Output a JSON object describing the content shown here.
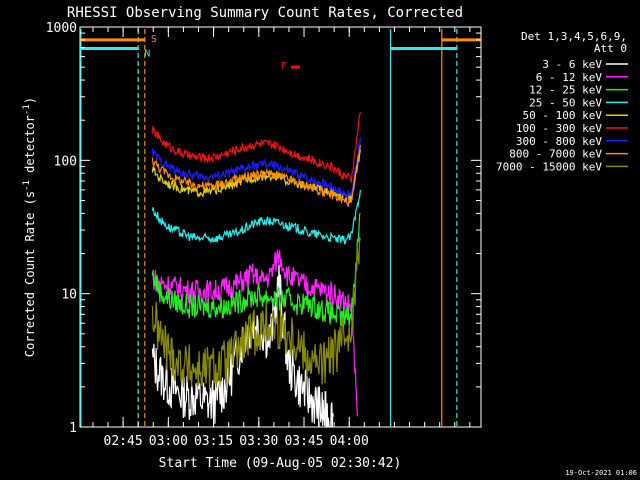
{
  "chart_data": {
    "type": "line",
    "title": "RHESSI Observing Summary Count Rates, Corrected",
    "xlabel": "Start Time (09-Aug-05 02:30:42)",
    "ylabel_parts": [
      "Corrected Count Rate (s",
      "-1",
      " detector",
      "-1",
      ")"
    ],
    "y_scale": "log",
    "ylim": [
      1,
      1000
    ],
    "y_ticks": [
      {
        "value": 1,
        "label": "1"
      },
      {
        "value": 10,
        "label": "10"
      },
      {
        "value": 100,
        "label": "100"
      },
      {
        "value": 1000,
        "label": "1000"
      }
    ],
    "x_unit": "minutes since 02:30:42",
    "xlim": [
      0,
      133
    ],
    "x_ticks": [
      {
        "value": 14.3,
        "label": "02:45"
      },
      {
        "value": 29.3,
        "label": "03:00"
      },
      {
        "value": 44.3,
        "label": "03:15"
      },
      {
        "value": 59.3,
        "label": "03:30"
      },
      {
        "value": 74.3,
        "label": "03:45"
      },
      {
        "value": 89.3,
        "label": "04:00"
      }
    ],
    "legend": {
      "header_lines": [
        "Det 1,3,4,5,6,9,",
        "Att 0"
      ],
      "placement": "right"
    },
    "series": [
      {
        "name": "3 - 6 keV",
        "color": "#ffffff",
        "x": [
          24,
          27,
          30,
          33,
          36,
          39,
          42,
          45,
          48,
          51,
          54,
          57,
          60,
          63,
          66,
          69,
          72,
          75,
          78,
          80,
          82,
          84
        ],
        "y": [
          3.2,
          2.4,
          2.0,
          1.8,
          1.7,
          1.7,
          1.5,
          1.6,
          2.0,
          2.8,
          4.5,
          6.0,
          5.5,
          4.5,
          12.0,
          3.0,
          2.2,
          1.8,
          1.5,
          1.3,
          1.2,
          1.2
        ]
      },
      {
        "name": "6 - 12 keV",
        "color": "#ff22ff",
        "x": [
          24,
          27,
          30,
          33,
          36,
          39,
          42,
          45,
          48,
          51,
          54,
          57,
          60,
          63,
          66,
          69,
          72,
          75,
          78,
          81,
          84,
          87,
          90,
          92
        ],
        "y": [
          13.0,
          12.0,
          11.5,
          11.0,
          10.5,
          10.5,
          10.5,
          10.5,
          11.0,
          11.5,
          12.5,
          14.0,
          12.5,
          13.5,
          20.0,
          13.5,
          12.5,
          11.5,
          11.0,
          10.5,
          10.0,
          9.0,
          8.0,
          1.2
        ]
      },
      {
        "name": "12 - 25 keV",
        "color": "#22ee22",
        "x": [
          24,
          27,
          30,
          33,
          36,
          39,
          42,
          45,
          48,
          51,
          54,
          57,
          60,
          63,
          66,
          69,
          72,
          75,
          78,
          81,
          84,
          87,
          90,
          93
        ],
        "y": [
          14.0,
          10.0,
          9.0,
          8.5,
          8.0,
          8.0,
          8.0,
          8.0,
          8.0,
          8.5,
          9.0,
          9.5,
          9.5,
          9.5,
          9.0,
          9.0,
          8.5,
          8.5,
          8.0,
          7.5,
          7.0,
          6.5,
          7.0,
          40.0
        ]
      },
      {
        "name": "25 - 50 keV",
        "color": "#22eeee",
        "x": [
          24,
          27,
          30,
          33,
          36,
          39,
          42,
          45,
          48,
          51,
          54,
          57,
          60,
          63,
          66,
          69,
          72,
          75,
          78,
          81,
          84,
          87,
          90,
          93
        ],
        "y": [
          43.0,
          35.0,
          31.0,
          29.0,
          27.0,
          26.0,
          26.0,
          26.0,
          27.0,
          28.0,
          30.0,
          33.0,
          35.0,
          35.0,
          34.0,
          32.0,
          31.0,
          29.0,
          28.0,
          27.0,
          26.0,
          25.0,
          27.0,
          60.0
        ]
      },
      {
        "name": "50 - 100 keV",
        "color": "#e6d200",
        "x": [
          24,
          27,
          30,
          33,
          36,
          39,
          42,
          45,
          48,
          51,
          54,
          57,
          60,
          63,
          66,
          69,
          72,
          75,
          78,
          81,
          84,
          87,
          90,
          93
        ],
        "y": [
          85.0,
          72.0,
          66.0,
          62.0,
          59.0,
          58.0,
          58.0,
          60.0,
          63.0,
          66.0,
          70.0,
          74.0,
          76.0,
          77.0,
          74.0,
          70.0,
          67.0,
          64.0,
          62.0,
          60.0,
          57.0,
          53.0,
          52.0,
          120.0
        ]
      },
      {
        "name": "100 - 300 keV",
        "color": "#ee1111",
        "x": [
          24,
          27,
          30,
          33,
          36,
          39,
          42,
          45,
          48,
          51,
          54,
          57,
          60,
          63,
          66,
          69,
          72,
          75,
          78,
          81,
          84,
          87,
          90,
          93
        ],
        "y": [
          170.0,
          140.0,
          125.0,
          115.0,
          108.0,
          105.0,
          104.0,
          106.0,
          112.0,
          118.0,
          125.0,
          130.0,
          133.0,
          132.0,
          126.0,
          118.0,
          110.0,
          104.0,
          98.0,
          94.0,
          88.0,
          78.0,
          72.0,
          230.0
        ]
      },
      {
        "name": "300 - 800 keV",
        "color": "#1a1aff",
        "x": [
          24,
          27,
          30,
          33,
          36,
          39,
          42,
          45,
          48,
          51,
          54,
          57,
          60,
          63,
          66,
          69,
          72,
          75,
          78,
          81,
          84,
          87,
          90,
          93
        ],
        "y": [
          115.0,
          98.0,
          88.0,
          82.0,
          78.0,
          76.0,
          75.0,
          76.0,
          79.0,
          82.0,
          86.0,
          90.0,
          93.0,
          93.0,
          89.0,
          84.0,
          79.0,
          74.0,
          70.0,
          67.0,
          63.0,
          57.0,
          55.0,
          150.0
        ]
      },
      {
        "name": "800 - 7000 keV",
        "color": "#ff8c00",
        "x": [
          24,
          27,
          30,
          33,
          36,
          39,
          42,
          45,
          48,
          51,
          54,
          57,
          60,
          63,
          66,
          69,
          72,
          75,
          78,
          81,
          84,
          87,
          90,
          93
        ],
        "y": [
          100.0,
          85.0,
          76.0,
          71.0,
          67.0,
          65.0,
          64.0,
          65.0,
          68.0,
          71.0,
          74.0,
          77.0,
          79.0,
          79.0,
          76.0,
          72.0,
          68.0,
          64.0,
          61.0,
          58.0,
          55.0,
          50.0,
          48.0,
          130.0
        ]
      },
      {
        "name": "7000 - 15000 keV",
        "color": "#8a8a00",
        "x": [
          24,
          27,
          30,
          33,
          36,
          39,
          42,
          45,
          48,
          51,
          54,
          57,
          60,
          63,
          66,
          69,
          72,
          75,
          78,
          81,
          84,
          87,
          90,
          93
        ],
        "y": [
          7.0,
          4.5,
          3.5,
          3.0,
          2.8,
          2.7,
          2.7,
          2.8,
          3.0,
          3.5,
          4.2,
          5.0,
          5.5,
          6.0,
          5.5,
          5.0,
          4.5,
          3.5,
          3.0,
          3.0,
          3.5,
          4.5,
          6.0,
          25.0
        ]
      }
    ],
    "flags": [
      {
        "label": "S",
        "color": "#ff8c00",
        "y_value": 800,
        "x_ranges": [
          [
            0,
            21.5
          ],
          [
            120,
            133
          ]
        ]
      },
      {
        "label": "N",
        "color": "#22eeee",
        "y_value": 690,
        "x_ranges": [
          [
            0,
            19.3
          ],
          [
            103,
            125
          ]
        ]
      },
      {
        "label": "F",
        "color": "#ee1111",
        "y_value": 500,
        "x_ranges": [
          [
            70,
            73
          ]
        ]
      }
    ],
    "vlines": [
      {
        "x": 0.3,
        "color": "#22eeee",
        "style": "solid"
      },
      {
        "x": 19.3,
        "color": "#22eeee",
        "style": "dashed"
      },
      {
        "x": 21.5,
        "color": "#ff8c00",
        "style": "dashed"
      },
      {
        "x": 103,
        "color": "#22eeee",
        "style": "solid"
      },
      {
        "x": 120,
        "color": "#ff8c00",
        "style": "solid"
      },
      {
        "x": 125,
        "color": "#22eeee",
        "style": "dashed"
      }
    ]
  },
  "footer": {
    "timestamp": "19-Oct-2021 01:06"
  }
}
